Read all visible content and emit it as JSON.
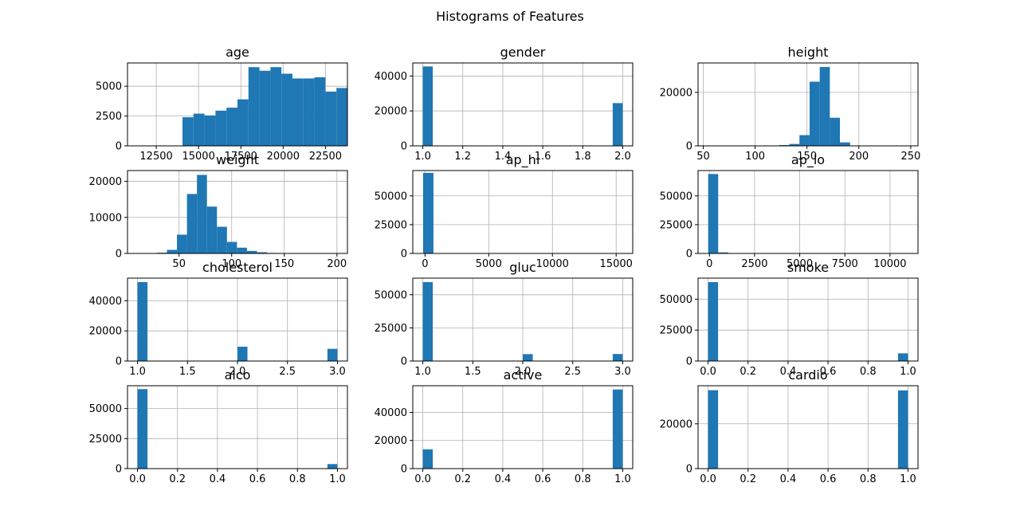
{
  "figure": {
    "title": "Histograms of Features"
  },
  "style": {
    "bar_color": "#1f77b4",
    "grid_color": "#b0b0b0"
  },
  "chart_data": [
    {
      "type": "bar",
      "title": "age",
      "grid": true,
      "xlim": [
        10800,
        23800
      ],
      "ylim": [
        0,
        6950
      ],
      "xticks": [
        {
          "v": 12500,
          "l": "12500"
        },
        {
          "v": 15000,
          "l": "15000"
        },
        {
          "v": 17500,
          "l": "17500"
        },
        {
          "v": 20000,
          "l": "20000"
        },
        {
          "v": 22500,
          "l": "22500"
        }
      ],
      "yticks": [
        {
          "v": 0,
          "l": "0"
        },
        {
          "v": 2500,
          "l": "2500"
        },
        {
          "v": 5000,
          "l": "5000"
        }
      ],
      "bin_edges": [
        10800,
        11450,
        12100,
        12750,
        13400,
        14050,
        14700,
        15350,
        16000,
        16650,
        17300,
        17950,
        18600,
        19250,
        19900,
        20550,
        21200,
        21850,
        22500,
        23150,
        23800
      ],
      "counts": [
        0,
        0,
        0,
        0,
        0,
        2400,
        2700,
        2550,
        2950,
        3200,
        3900,
        6600,
        6300,
        6600,
        6050,
        5650,
        5650,
        5750,
        4550,
        4850
      ]
    },
    {
      "type": "bar",
      "title": "gender",
      "grid": true,
      "xlim": [
        0.95,
        2.05
      ],
      "ylim": [
        0,
        47500
      ],
      "xticks": [
        {
          "v": 1.0,
          "l": "1.0"
        },
        {
          "v": 1.2,
          "l": "1.2"
        },
        {
          "v": 1.4,
          "l": "1.4"
        },
        {
          "v": 1.6,
          "l": "1.6"
        },
        {
          "v": 1.8,
          "l": "1.8"
        },
        {
          "v": 2.0,
          "l": "2.0"
        }
      ],
      "yticks": [
        {
          "v": 0,
          "l": "0"
        },
        {
          "v": 20000,
          "l": "20000"
        },
        {
          "v": 40000,
          "l": "40000"
        }
      ],
      "bin_edges": [
        1.0,
        1.05,
        1.1,
        1.15,
        1.2,
        1.25,
        1.3,
        1.35,
        1.4,
        1.45,
        1.5,
        1.55,
        1.6,
        1.65,
        1.7,
        1.75,
        1.8,
        1.85,
        1.9,
        1.95,
        2.0
      ],
      "counts": [
        45500,
        0,
        0,
        0,
        0,
        0,
        0,
        0,
        0,
        0,
        0,
        0,
        0,
        0,
        0,
        0,
        0,
        0,
        0,
        24500
      ]
    },
    {
      "type": "bar",
      "title": "height",
      "grid": true,
      "xlim": [
        45,
        257
      ],
      "ylim": [
        0,
        31000
      ],
      "xticks": [
        {
          "v": 50,
          "l": "50"
        },
        {
          "v": 100,
          "l": "100"
        },
        {
          "v": 150,
          "l": "150"
        },
        {
          "v": 200,
          "l": "200"
        },
        {
          "v": 250,
          "l": "250"
        }
      ],
      "yticks": [
        {
          "v": 0,
          "l": "0"
        },
        {
          "v": 20000,
          "l": "20000"
        }
      ],
      "bin_edges": [
        55,
        64.75,
        74.5,
        84.25,
        94,
        103.75,
        113.5,
        123.25,
        133,
        142.75,
        152.5,
        162.25,
        172,
        181.75,
        191.5,
        201.25,
        211,
        220.75,
        230.5,
        240.25,
        250
      ],
      "counts": [
        10,
        10,
        10,
        10,
        30,
        60,
        120,
        300,
        700,
        4000,
        24000,
        29500,
        10500,
        1300,
        90,
        10,
        5,
        0,
        0,
        5
      ]
    },
    {
      "type": "bar",
      "title": "weight",
      "grid": true,
      "xlim": [
        1,
        210
      ],
      "ylim": [
        0,
        23000
      ],
      "xticks": [
        {
          "v": 50,
          "l": "50"
        },
        {
          "v": 100,
          "l": "100"
        },
        {
          "v": 150,
          "l": "150"
        },
        {
          "v": 200,
          "l": "200"
        }
      ],
      "yticks": [
        {
          "v": 0,
          "l": "0"
        },
        {
          "v": 10000,
          "l": "10000"
        },
        {
          "v": 20000,
          "l": "20000"
        }
      ],
      "bin_edges": [
        10,
        19.5,
        29,
        38.5,
        48,
        57.5,
        67,
        76.5,
        86,
        95.5,
        105,
        114.5,
        124,
        133.5,
        143,
        152.5,
        162,
        171.5,
        181,
        190.5,
        200
      ],
      "counts": [
        20,
        60,
        200,
        1000,
        5200,
        16500,
        21800,
        13000,
        7400,
        3200,
        1600,
        700,
        330,
        140,
        60,
        30,
        15,
        10,
        5,
        5
      ]
    },
    {
      "type": "bar",
      "title": "ap_hi",
      "grid": true,
      "xlim": [
        -960,
        16300
      ],
      "ylim": [
        0,
        72000
      ],
      "xticks": [
        {
          "v": 0,
          "l": "0"
        },
        {
          "v": 5000,
          "l": "5000"
        },
        {
          "v": 10000,
          "l": "10000"
        },
        {
          "v": 15000,
          "l": "15000"
        }
      ],
      "yticks": [
        {
          "v": 0,
          "l": "0"
        },
        {
          "v": 25000,
          "l": "25000"
        },
        {
          "v": 50000,
          "l": "50000"
        }
      ],
      "bin_edges": [
        -150,
        662.5,
        1475,
        2287.5,
        3100,
        3912.5,
        4725,
        5537.5,
        6350,
        7162.5,
        7975,
        8787.5,
        9600,
        10412.5,
        11225,
        12037.5,
        12850,
        13662.5,
        14475,
        15287.5,
        16100
      ],
      "counts": [
        70000,
        10,
        5,
        0,
        0,
        0,
        0,
        0,
        0,
        0,
        0,
        5,
        0,
        0,
        0,
        0,
        5,
        0,
        0,
        0
      ]
    },
    {
      "type": "bar",
      "title": "ap_lo",
      "grid": true,
      "xlim": [
        -630,
        11550
      ],
      "ylim": [
        0,
        72000
      ],
      "xticks": [
        {
          "v": 0,
          "l": "0"
        },
        {
          "v": 2500,
          "l": "2500"
        },
        {
          "v": 5000,
          "l": "5000"
        },
        {
          "v": 7500,
          "l": "7500"
        },
        {
          "v": 10000,
          "l": "10000"
        }
      ],
      "yticks": [
        {
          "v": 0,
          "l": "0"
        },
        {
          "v": 25000,
          "l": "25000"
        },
        {
          "v": 50000,
          "l": "50000"
        }
      ],
      "bin_edges": [
        -70,
        484,
        1038,
        1592,
        2146,
        2700,
        3254,
        3808,
        4362,
        4916,
        5470,
        6024,
        6578,
        7132,
        7686,
        8240,
        8794,
        9348,
        9902,
        10456,
        11010
      ],
      "counts": [
        69000,
        900,
        50,
        5,
        0,
        0,
        0,
        0,
        0,
        0,
        0,
        0,
        0,
        0,
        0,
        0,
        0,
        0,
        0,
        0
      ]
    },
    {
      "type": "bar",
      "title": "cholesterol",
      "grid": true,
      "xlim": [
        0.9,
        3.1
      ],
      "ylim": [
        0,
        55000
      ],
      "xticks": [
        {
          "v": 1.0,
          "l": "1.0"
        },
        {
          "v": 1.5,
          "l": "1.5"
        },
        {
          "v": 2.0,
          "l": "2.0"
        },
        {
          "v": 2.5,
          "l": "2.5"
        },
        {
          "v": 3.0,
          "l": "3.0"
        }
      ],
      "yticks": [
        {
          "v": 0,
          "l": "0"
        },
        {
          "v": 20000,
          "l": "20000"
        },
        {
          "v": 40000,
          "l": "40000"
        }
      ],
      "bin_edges": [
        1.0,
        1.1,
        1.2,
        1.3,
        1.4,
        1.5,
        1.6,
        1.7,
        1.8,
        1.9,
        2.0,
        2.1,
        2.2,
        2.3,
        2.4,
        2.5,
        2.6,
        2.7,
        2.8,
        2.9,
        3.0
      ],
      "counts": [
        52400,
        0,
        0,
        0,
        0,
        0,
        0,
        0,
        0,
        0,
        9500,
        0,
        0,
        0,
        0,
        0,
        0,
        0,
        0,
        8100
      ]
    },
    {
      "type": "bar",
      "title": "gluc",
      "grid": true,
      "xlim": [
        0.9,
        3.1
      ],
      "ylim": [
        0,
        62500
      ],
      "xticks": [
        {
          "v": 1.0,
          "l": "1.0"
        },
        {
          "v": 1.5,
          "l": "1.5"
        },
        {
          "v": 2.0,
          "l": "2.0"
        },
        {
          "v": 2.5,
          "l": "2.5"
        },
        {
          "v": 3.0,
          "l": "3.0"
        }
      ],
      "yticks": [
        {
          "v": 0,
          "l": "0"
        },
        {
          "v": 25000,
          "l": "25000"
        },
        {
          "v": 50000,
          "l": "50000"
        }
      ],
      "bin_edges": [
        1.0,
        1.1,
        1.2,
        1.3,
        1.4,
        1.5,
        1.6,
        1.7,
        1.8,
        1.9,
        2.0,
        2.1,
        2.2,
        2.3,
        2.4,
        2.5,
        2.6,
        2.7,
        2.8,
        2.9,
        3.0
      ],
      "counts": [
        59500,
        0,
        0,
        0,
        0,
        0,
        0,
        0,
        0,
        0,
        5200,
        0,
        0,
        0,
        0,
        0,
        0,
        0,
        0,
        5300
      ]
    },
    {
      "type": "bar",
      "title": "smoke",
      "grid": true,
      "xlim": [
        -0.05,
        1.05
      ],
      "ylim": [
        0,
        67000
      ],
      "xticks": [
        {
          "v": 0.0,
          "l": "0.0"
        },
        {
          "v": 0.2,
          "l": "0.2"
        },
        {
          "v": 0.4,
          "l": "0.4"
        },
        {
          "v": 0.6,
          "l": "0.6"
        },
        {
          "v": 0.8,
          "l": "0.8"
        },
        {
          "v": 1.0,
          "l": "1.0"
        }
      ],
      "yticks": [
        {
          "v": 0,
          "l": "0"
        },
        {
          "v": 25000,
          "l": "25000"
        },
        {
          "v": 50000,
          "l": "50000"
        }
      ],
      "bin_edges": [
        0.0,
        0.05,
        0.1,
        0.15,
        0.2,
        0.25,
        0.3,
        0.35,
        0.4,
        0.45,
        0.5,
        0.55,
        0.6,
        0.65,
        0.7,
        0.75,
        0.8,
        0.85,
        0.9,
        0.95,
        1.0
      ],
      "counts": [
        63800,
        0,
        0,
        0,
        0,
        0,
        0,
        0,
        0,
        0,
        0,
        0,
        0,
        0,
        0,
        0,
        0,
        0,
        0,
        6200
      ]
    },
    {
      "type": "bar",
      "title": "alco",
      "grid": true,
      "xlim": [
        -0.05,
        1.05
      ],
      "ylim": [
        0,
        69000
      ],
      "xticks": [
        {
          "v": 0.0,
          "l": "0.0"
        },
        {
          "v": 0.2,
          "l": "0.2"
        },
        {
          "v": 0.4,
          "l": "0.4"
        },
        {
          "v": 0.6,
          "l": "0.6"
        },
        {
          "v": 0.8,
          "l": "0.8"
        },
        {
          "v": 1.0,
          "l": "1.0"
        }
      ],
      "yticks": [
        {
          "v": 0,
          "l": "0"
        },
        {
          "v": 25000,
          "l": "25000"
        },
        {
          "v": 50000,
          "l": "50000"
        }
      ],
      "bin_edges": [
        0.0,
        0.05,
        0.1,
        0.15,
        0.2,
        0.25,
        0.3,
        0.35,
        0.4,
        0.45,
        0.5,
        0.55,
        0.6,
        0.65,
        0.7,
        0.75,
        0.8,
        0.85,
        0.9,
        0.95,
        1.0
      ],
      "counts": [
        66200,
        0,
        0,
        0,
        0,
        0,
        0,
        0,
        0,
        0,
        0,
        0,
        0,
        0,
        0,
        0,
        0,
        0,
        0,
        3800
      ]
    },
    {
      "type": "bar",
      "title": "active",
      "grid": true,
      "xlim": [
        -0.05,
        1.05
      ],
      "ylim": [
        0,
        59000
      ],
      "xticks": [
        {
          "v": 0.0,
          "l": "0.0"
        },
        {
          "v": 0.2,
          "l": "0.2"
        },
        {
          "v": 0.4,
          "l": "0.4"
        },
        {
          "v": 0.6,
          "l": "0.6"
        },
        {
          "v": 0.8,
          "l": "0.8"
        },
        {
          "v": 1.0,
          "l": "1.0"
        }
      ],
      "yticks": [
        {
          "v": 0,
          "l": "0"
        },
        {
          "v": 20000,
          "l": "20000"
        },
        {
          "v": 40000,
          "l": "40000"
        }
      ],
      "bin_edges": [
        0.0,
        0.05,
        0.1,
        0.15,
        0.2,
        0.25,
        0.3,
        0.35,
        0.4,
        0.45,
        0.5,
        0.55,
        0.6,
        0.65,
        0.7,
        0.75,
        0.8,
        0.85,
        0.9,
        0.95,
        1.0
      ],
      "counts": [
        13700,
        0,
        0,
        0,
        0,
        0,
        0,
        0,
        0,
        0,
        0,
        0,
        0,
        0,
        0,
        0,
        0,
        0,
        0,
        56300
      ]
    },
    {
      "type": "bar",
      "title": "cardio",
      "grid": true,
      "xlim": [
        -0.05,
        1.05
      ],
      "ylim": [
        0,
        37000
      ],
      "xticks": [
        {
          "v": 0.0,
          "l": "0.0"
        },
        {
          "v": 0.2,
          "l": "0.2"
        },
        {
          "v": 0.4,
          "l": "0.4"
        },
        {
          "v": 0.6,
          "l": "0.6"
        },
        {
          "v": 0.8,
          "l": "0.8"
        },
        {
          "v": 1.0,
          "l": "1.0"
        }
      ],
      "yticks": [
        {
          "v": 0,
          "l": "0"
        },
        {
          "v": 20000,
          "l": "20000"
        }
      ],
      "bin_edges": [
        0.0,
        0.05,
        0.1,
        0.15,
        0.2,
        0.25,
        0.3,
        0.35,
        0.4,
        0.45,
        0.5,
        0.55,
        0.6,
        0.65,
        0.7,
        0.75,
        0.8,
        0.85,
        0.9,
        0.95,
        1.0
      ],
      "counts": [
        35000,
        0,
        0,
        0,
        0,
        0,
        0,
        0,
        0,
        0,
        0,
        0,
        0,
        0,
        0,
        0,
        0,
        0,
        0,
        34900
      ]
    }
  ]
}
